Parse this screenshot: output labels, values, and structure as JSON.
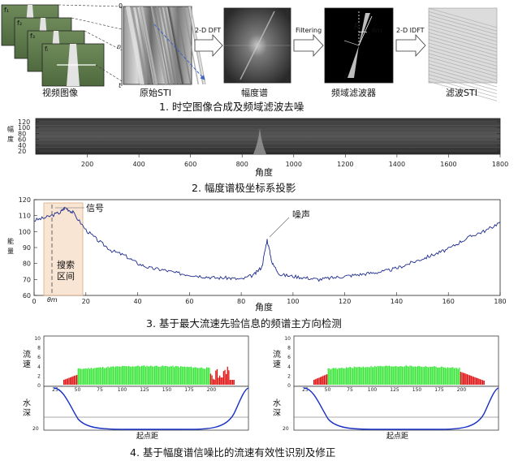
{
  "row1": {
    "video_label": "视频图像",
    "frame_labels": [
      "f₁",
      "f₂",
      "f₃",
      "fᵢ"
    ],
    "sti_axes": {
      "t_label": "t",
      "n_label": "n",
      "zero": "0"
    },
    "original_sti": "原始STI",
    "arrow1": "2-D DFT",
    "amplitude": "幅度谱",
    "arrow2": "Filtering",
    "filter": "频域滤波器",
    "filter_R": "R",
    "filter_theta": "θm",
    "filter_beta": "β",
    "arrow3": "2-D IDFT",
    "filtered_sti": "滤波STI",
    "caption": "1. 时空图像合成及频域滤波去噪"
  },
  "row2": {
    "ylabel": "幅\n度",
    "yticks": [
      "120",
      "100",
      "80",
      "60",
      "40",
      "20"
    ],
    "xticks": [
      "200",
      "400",
      "600",
      "800",
      "1000",
      "1200",
      "1400",
      "1600",
      "1800"
    ],
    "xlabel": "角度",
    "caption": "2. 幅度谱极坐标系投影"
  },
  "row3": {
    "ylabel": "能\n量",
    "yticks": [
      "120",
      "110",
      "100",
      "90",
      "80",
      "70",
      "60"
    ],
    "xticks": [
      "0",
      "20",
      "40",
      "60",
      "80",
      "100",
      "120",
      "140",
      "160",
      "180"
    ],
    "xlabel": "角度",
    "signal_label": "信号",
    "noise_label": "噪声",
    "search_label_1": "搜索",
    "search_label_2": "区间",
    "theta_label": "θm",
    "caption": "3. 基于最大流速先验信息的频谱主方向检测"
  },
  "row4": {
    "panels": [
      {
        "speed_label": "流\n速",
        "depth_label": "水\n深",
        "xlabel": "起点距"
      },
      {
        "speed_label": "流\n速",
        "depth_label": "水\n深",
        "xlabel": "起点距"
      }
    ],
    "yticks_top": [
      "10",
      "8",
      "6",
      "4",
      "2",
      "0"
    ],
    "xticks": [
      "25",
      "50",
      "75",
      "100",
      "125",
      "150",
      "175",
      "200"
    ],
    "depth_tick": "20",
    "caption": "4. 基于幅度谱信噪比的流速有效性识别及修正"
  },
  "chart_data": {
    "type": "line",
    "title": "",
    "xlabel": "角度",
    "ylabel": "能量",
    "xlim": [
      0,
      180
    ],
    "ylim": [
      60,
      120
    ],
    "series": [
      {
        "x": [
          0,
          5,
          10,
          12,
          15,
          20,
          25,
          30,
          35,
          40,
          45,
          50,
          55,
          60,
          65,
          70,
          75,
          80,
          85,
          88,
          90,
          92,
          95,
          100,
          105,
          110,
          115,
          120,
          125,
          130,
          135,
          140,
          145,
          150,
          155,
          160,
          165,
          170,
          175,
          180
        ],
        "values": [
          107,
          109,
          112,
          115,
          112,
          101,
          94,
          88,
          85,
          80,
          77,
          76,
          74,
          73,
          72,
          71,
          71,
          70,
          73,
          78,
          95,
          80,
          73,
          72,
          71,
          70,
          71,
          72,
          73,
          74,
          75,
          77,
          80,
          83,
          86,
          89,
          94,
          98,
          101,
          106
        ]
      }
    ]
  }
}
